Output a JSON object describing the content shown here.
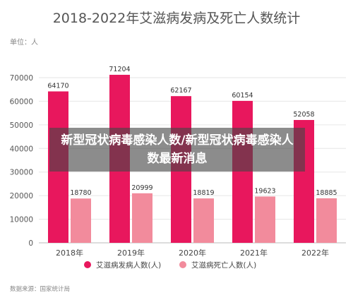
{
  "chart_data": {
    "type": "bar",
    "title": "2018-2022年艾滋病发病及死亡人数统计",
    "unit_label": "单位：人",
    "categories": [
      "2018年",
      "2019年",
      "2020年",
      "2021年",
      "2022年"
    ],
    "series": [
      {
        "name": "艾滋病发病人数(人)",
        "values": [
          64170,
          71204,
          62167,
          60154,
          52058
        ],
        "color": "#e8175d"
      },
      {
        "name": "艾滋病死亡人数(人)",
        "values": [
          18780,
          20999,
          18819,
          19623,
          18885
        ],
        "color": "#f28b9c"
      }
    ],
    "ylim": [
      0,
      70000
    ],
    "yticks": [
      0,
      10000,
      20000,
      30000,
      40000,
      50000,
      60000,
      70000
    ],
    "grid": true,
    "legend_position": "bottom",
    "source": "数据来源：国家统计局"
  },
  "overlay_text": "新型冠状病毒感染人数/新型冠状病毒感染人数最新消息"
}
